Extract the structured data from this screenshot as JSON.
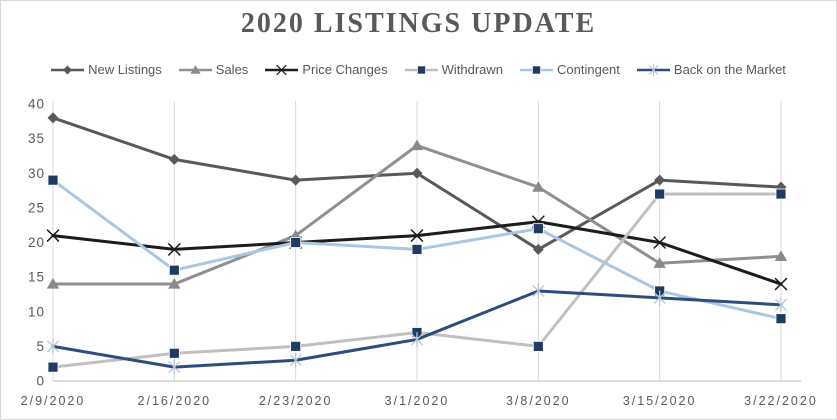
{
  "title": "2020 LISTINGS UPDATE",
  "chart_data": {
    "type": "line",
    "title": "2020 LISTINGS UPDATE",
    "categories": [
      "2/9/2020",
      "2/16/2020",
      "2/23/2020",
      "3/1/2020",
      "3/8/2020",
      "3/15/2020",
      "3/22/2020"
    ],
    "series": [
      {
        "name": "New Listings",
        "values": [
          38,
          32,
          29,
          30,
          19,
          29,
          28
        ],
        "line_color": "#595959",
        "marker": "diamond",
        "marker_color": "#595959"
      },
      {
        "name": "Sales",
        "values": [
          14,
          14,
          21,
          34,
          28,
          17,
          18
        ],
        "line_color": "#8f8f8f",
        "marker": "triangle",
        "marker_color": "#8a8a8a"
      },
      {
        "name": "Price Changes",
        "values": [
          21,
          19,
          20,
          21,
          23,
          20,
          14
        ],
        "line_color": "#1c1c1c",
        "marker": "x",
        "marker_color": "#1c1c1c"
      },
      {
        "name": "Withdrawn",
        "values": [
          2,
          4,
          5,
          7,
          5,
          27,
          27
        ],
        "line_color": "#c0c0c0",
        "marker": "square",
        "marker_color": "#1f3b63"
      },
      {
        "name": "Contingent",
        "values": [
          29,
          16,
          20,
          19,
          22,
          13,
          9
        ],
        "line_color": "#a9c7e3",
        "marker": "square",
        "marker_color": "#1f3b63"
      },
      {
        "name": "Back on the Market",
        "values": [
          5,
          2,
          3,
          6,
          13,
          12,
          11
        ],
        "line_color": "#2d4d7c",
        "marker": "asterisk",
        "marker_color": "#b5c5d8"
      }
    ],
    "ylim": [
      0,
      40
    ],
    "ytick_step": 5,
    "y_tick_labels": [
      "0",
      "5",
      "10",
      "15",
      "20",
      "25",
      "30",
      "35",
      "40"
    ],
    "grid": "vertical-only",
    "legend_position": "top",
    "text_color": "#595959",
    "grid_color": "#d9d9d9",
    "axis_line_color": "#c9c9c9"
  }
}
